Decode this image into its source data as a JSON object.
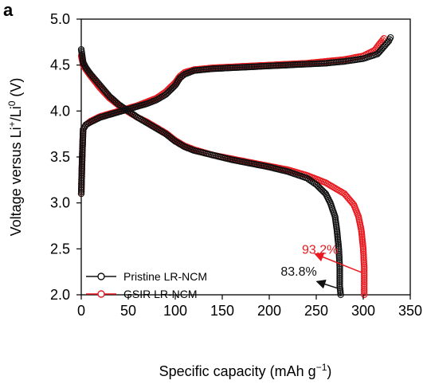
{
  "panel_label": "a",
  "chart_data": {
    "type": "scatter",
    "xlabel": "Specific capacity (mAh g",
    "xlabel_sup": "−1",
    "xlabel_tail": ")",
    "ylabel_parts": [
      "Voltage versus Li",
      "+",
      "/Li",
      "0",
      " (V)"
    ],
    "xlim": [
      0,
      350
    ],
    "ylim": [
      2.0,
      5.0
    ],
    "xticks": [
      0,
      50,
      100,
      150,
      200,
      250,
      300,
      350
    ],
    "yticks": [
      2.0,
      2.5,
      3.0,
      3.5,
      4.0,
      4.5,
      5.0
    ],
    "ytick_labels": [
      "2.0",
      "2.5",
      "3.0",
      "3.5",
      "4.0",
      "4.5",
      "5.0"
    ],
    "grid": false,
    "legend_position": "bottom-left",
    "series": [
      {
        "name": "Pristine LR-NCM",
        "color": "#111111",
        "charge": [
          [
            0,
            3.1
          ],
          [
            1,
            3.5
          ],
          [
            2,
            3.8
          ],
          [
            5,
            3.85
          ],
          [
            10,
            3.88
          ],
          [
            20,
            3.93
          ],
          [
            30,
            3.96
          ],
          [
            40,
            3.99
          ],
          [
            50,
            4.02
          ],
          [
            60,
            4.05
          ],
          [
            70,
            4.08
          ],
          [
            80,
            4.12
          ],
          [
            90,
            4.18
          ],
          [
            100,
            4.28
          ],
          [
            105,
            4.36
          ],
          [
            110,
            4.4
          ],
          [
            120,
            4.44
          ],
          [
            140,
            4.46
          ],
          [
            160,
            4.47
          ],
          [
            180,
            4.48
          ],
          [
            200,
            4.49
          ],
          [
            220,
            4.5
          ],
          [
            240,
            4.51
          ],
          [
            260,
            4.52
          ],
          [
            280,
            4.54
          ],
          [
            300,
            4.57
          ],
          [
            315,
            4.62
          ],
          [
            322,
            4.7
          ],
          [
            327,
            4.76
          ],
          [
            329,
            4.8
          ]
        ],
        "discharge": [
          [
            0,
            4.67
          ],
          [
            1,
            4.6
          ],
          [
            2,
            4.53
          ],
          [
            5,
            4.47
          ],
          [
            10,
            4.4
          ],
          [
            20,
            4.28
          ],
          [
            30,
            4.16
          ],
          [
            40,
            4.07
          ],
          [
            50,
            4.0
          ],
          [
            60,
            3.93
          ],
          [
            70,
            3.87
          ],
          [
            80,
            3.81
          ],
          [
            90,
            3.75
          ],
          [
            100,
            3.67
          ],
          [
            110,
            3.61
          ],
          [
            120,
            3.57
          ],
          [
            140,
            3.52
          ],
          [
            160,
            3.47
          ],
          [
            180,
            3.43
          ],
          [
            200,
            3.39
          ],
          [
            220,
            3.34
          ],
          [
            240,
            3.27
          ],
          [
            250,
            3.2
          ],
          [
            260,
            3.1
          ],
          [
            265,
            3.0
          ],
          [
            270,
            2.85
          ],
          [
            272,
            2.7
          ],
          [
            274,
            2.5
          ],
          [
            275,
            2.3
          ],
          [
            275,
            2.1
          ],
          [
            276,
            2.0
          ]
        ]
      },
      {
        "name": "GSIR LR-NCM",
        "color": "#e8191f",
        "charge": [
          [
            0,
            3.1
          ],
          [
            1,
            3.5
          ],
          [
            2,
            3.8
          ],
          [
            5,
            3.85
          ],
          [
            10,
            3.89
          ],
          [
            20,
            3.94
          ],
          [
            30,
            3.97
          ],
          [
            40,
            4.0
          ],
          [
            50,
            4.03
          ],
          [
            60,
            4.06
          ],
          [
            70,
            4.1
          ],
          [
            80,
            4.14
          ],
          [
            90,
            4.21
          ],
          [
            100,
            4.31
          ],
          [
            105,
            4.38
          ],
          [
            110,
            4.42
          ],
          [
            120,
            4.45
          ],
          [
            140,
            4.47
          ],
          [
            160,
            4.48
          ],
          [
            180,
            4.49
          ],
          [
            200,
            4.5
          ],
          [
            220,
            4.51
          ],
          [
            240,
            4.52
          ],
          [
            260,
            4.54
          ],
          [
            280,
            4.56
          ],
          [
            300,
            4.6
          ],
          [
            312,
            4.66
          ],
          [
            318,
            4.74
          ],
          [
            322,
            4.79
          ]
        ],
        "discharge": [
          [
            0,
            4.6
          ],
          [
            1,
            4.55
          ],
          [
            2,
            4.5
          ],
          [
            5,
            4.45
          ],
          [
            10,
            4.38
          ],
          [
            20,
            4.25
          ],
          [
            30,
            4.14
          ],
          [
            40,
            4.06
          ],
          [
            50,
            3.99
          ],
          [
            60,
            3.93
          ],
          [
            70,
            3.88
          ],
          [
            80,
            3.82
          ],
          [
            90,
            3.76
          ],
          [
            100,
            3.68
          ],
          [
            110,
            3.62
          ],
          [
            120,
            3.58
          ],
          [
            140,
            3.52
          ],
          [
            160,
            3.48
          ],
          [
            180,
            3.44
          ],
          [
            200,
            3.4
          ],
          [
            220,
            3.36
          ],
          [
            240,
            3.3
          ],
          [
            260,
            3.22
          ],
          [
            280,
            3.1
          ],
          [
            290,
            2.98
          ],
          [
            295,
            2.85
          ],
          [
            298,
            2.7
          ],
          [
            300,
            2.5
          ],
          [
            301,
            2.3
          ],
          [
            301,
            2.1
          ],
          [
            301,
            2.0
          ]
        ]
      }
    ],
    "annotations": [
      {
        "text": "93.2%",
        "color": "#e8191f",
        "x": 280,
        "y": 2.5
      },
      {
        "text": "83.8%",
        "color": "#111111",
        "x": 282,
        "y": 2.14
      }
    ]
  }
}
